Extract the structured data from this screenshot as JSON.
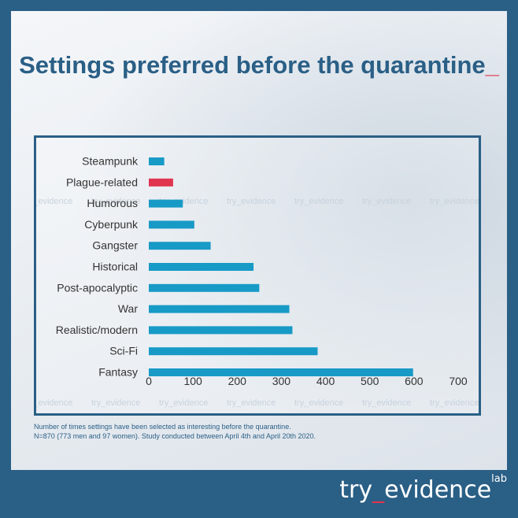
{
  "title_main": "Settings preferred before the quarantine",
  "title_cursor": "_",
  "footnote_line1": "Number of times settings have been selected as interesting before the quarantine.",
  "footnote_line2": "N=870 (773 men and 97 women). Study conducted between April 4th and April 20th 2020.",
  "logo": {
    "part1": "try",
    "underscore": "_",
    "part2": "evidence",
    "sup": "lab"
  },
  "watermark_text": "try_evidence",
  "colors": {
    "bar": "#189ac6",
    "highlight": "#e0344f",
    "brand": "#2a5f86"
  },
  "chart_data": {
    "type": "bar",
    "orientation": "horizontal",
    "categories": [
      "Steampunk",
      "Plague-related",
      "Humorous",
      "Cyberpunk",
      "Gangster",
      "Historical",
      "Post-apocalyptic",
      "War",
      "Realistic/modern",
      "Sci-Fi",
      "Fantasy"
    ],
    "values": [
      35,
      55,
      77,
      103,
      140,
      237,
      250,
      318,
      325,
      382,
      598
    ],
    "highlight_index": 1,
    "xlim": [
      0,
      700
    ],
    "xticks": [
      0,
      100,
      200,
      300,
      400,
      500,
      600,
      700
    ],
    "xlabel": "",
    "ylabel": "",
    "grid": false
  }
}
